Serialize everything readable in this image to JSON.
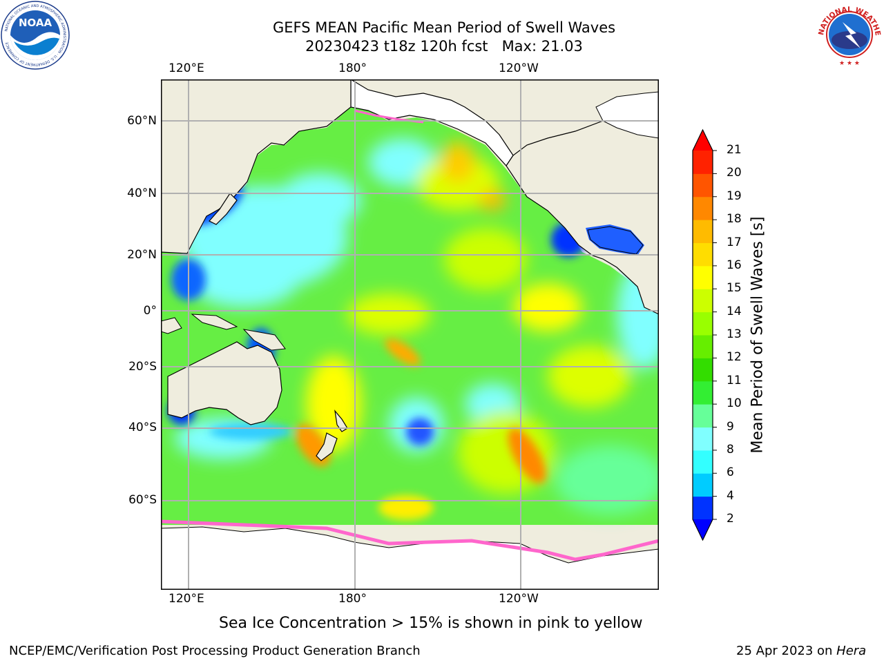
{
  "title": {
    "line1": "GEFS MEAN Pacific Mean Period of Swell Waves",
    "line2": "20230423 t18z 120h fcst   Max: 21.03"
  },
  "logos": {
    "left": "NOAA",
    "left_ring": "NATIONAL OCEANIC AND ATMOSPHERIC ADMINISTRATION · U.S. DEPARTMENT OF COMMERCE",
    "right_ring": "NATIONAL WEATHER SERVICE"
  },
  "axes": {
    "lon_labels": [
      "120°E",
      "180°",
      "120°W"
    ],
    "lat_labels": [
      "60°N",
      "40°N",
      "20°N",
      "0°",
      "20°S",
      "40°S",
      "60°S"
    ]
  },
  "colorbar": {
    "title": "Mean Period of Swell Waves [s]",
    "ticks": [
      "2",
      "4",
      "6",
      "8",
      "9",
      "10",
      "11",
      "12",
      "13",
      "14",
      "15",
      "16",
      "17",
      "18",
      "19",
      "20",
      "21"
    ],
    "colors": [
      "#0033ff",
      "#00ccff",
      "#33ffff",
      "#80ffff",
      "#66ff99",
      "#33ee33",
      "#33dd00",
      "#66ee00",
      "#99ff00",
      "#ccff00",
      "#ffff00",
      "#ffdd00",
      "#ffbb00",
      "#ff8800",
      "#ff5500",
      "#ff2200"
    ],
    "under_color": "#0000ff",
    "over_color": "#ff0000"
  },
  "note": "Sea Ice Concentration > 15% is shown in pink to yellow",
  "footer": {
    "left": "NCEP/EMC/Verification Post Processing Product Generation Branch",
    "right_prefix": "25 Apr 2023 on ",
    "right_host": "Hera"
  }
}
